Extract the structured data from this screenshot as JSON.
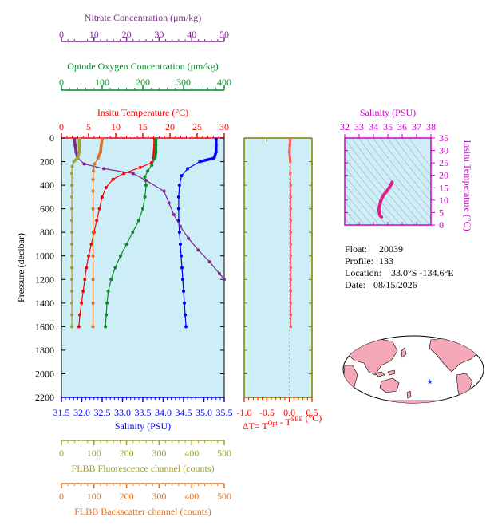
{
  "chart_data": [
    {
      "type": "line",
      "panel": "main-profile",
      "ylabel": "Pressure (decibar)",
      "ylim": [
        2200,
        0
      ],
      "yticks": [
        0,
        200,
        400,
        600,
        800,
        1000,
        1200,
        1400,
        1600,
        1800,
        2000,
        2200
      ],
      "axes": [
        {
          "key": "nitrate",
          "label": "Nitrate Concentration (μm/kg)",
          "range": [
            0,
            50
          ],
          "ticks": [
            0,
            10,
            20,
            30,
            40,
            50
          ],
          "color": "#7b2a8c"
        },
        {
          "key": "oxygen",
          "label": "Optode Oxygen Concentration (μm/kg)",
          "range": [
            0,
            400
          ],
          "ticks": [
            0,
            100,
            200,
            300,
            400
          ],
          "color": "#0a8a2a"
        },
        {
          "key": "temperature",
          "label": "Insitu Temperature (°C)",
          "range": [
            0,
            30
          ],
          "ticks": [
            0,
            5,
            10,
            15,
            20,
            25,
            30
          ],
          "color": "#ff0000"
        },
        {
          "key": "salinity",
          "label": "Salinity (PSU)",
          "range": [
            31.5,
            35.5
          ],
          "ticks": [
            "31.5",
            "32.0",
            "32.5",
            "33.0",
            "33.5",
            "34.0",
            "34.5",
            "35.0",
            "35.5"
          ],
          "color": "#0000ff"
        },
        {
          "key": "fluorescence",
          "label": "FLBB Fluorescence channel (counts)",
          "range": [
            0,
            500
          ],
          "ticks": [
            0,
            100,
            200,
            300,
            400,
            500
          ],
          "color": "#a0a030"
        },
        {
          "key": "backscatter",
          "label": "FLBB Backscatter channel (counts)",
          "range": [
            0,
            500
          ],
          "ticks": [
            0,
            100,
            200,
            300,
            400,
            500
          ],
          "color": "#e07020"
        }
      ],
      "series": [
        {
          "key": "temperature",
          "color": "#ff0000",
          "points": [
            [
              17.2,
              10
            ],
            [
              17.2,
              60
            ],
            [
              17.1,
              120
            ],
            [
              17.0,
              170
            ],
            [
              16.6,
              210
            ],
            [
              14.5,
              250
            ],
            [
              11.5,
              300
            ],
            [
              9.5,
              350
            ],
            [
              8.2,
              420
            ],
            [
              7.5,
              500
            ],
            [
              7.0,
              600
            ],
            [
              6.5,
              700
            ],
            [
              6.0,
              800
            ],
            [
              5.5,
              900
            ],
            [
              5.0,
              1000
            ],
            [
              4.6,
              1100
            ],
            [
              4.3,
              1200
            ],
            [
              4.0,
              1300
            ],
            [
              3.7,
              1400
            ],
            [
              3.4,
              1500
            ],
            [
              3.2,
              1600
            ]
          ]
        },
        {
          "key": "salinity",
          "color": "#0000ff",
          "points": [
            [
              35.3,
              10
            ],
            [
              35.3,
              60
            ],
            [
              35.3,
              120
            ],
            [
              35.25,
              170
            ],
            [
              34.9,
              200
            ],
            [
              34.6,
              260
            ],
            [
              34.45,
              320
            ],
            [
              34.4,
              400
            ],
            [
              34.38,
              500
            ],
            [
              34.38,
              600
            ],
            [
              34.38,
              700
            ],
            [
              34.4,
              800
            ],
            [
              34.42,
              900
            ],
            [
              34.44,
              1000
            ],
            [
              34.46,
              1100
            ],
            [
              34.48,
              1200
            ],
            [
              34.5,
              1300
            ],
            [
              34.52,
              1400
            ],
            [
              34.54,
              1500
            ],
            [
              34.56,
              1600
            ]
          ]
        },
        {
          "key": "oxygen",
          "color": "#0a8a2a",
          "points": [
            [
              232,
              10
            ],
            [
              232,
              60
            ],
            [
              232,
              120
            ],
            [
              230,
              170
            ],
            [
              222,
              230
            ],
            [
              212,
              280
            ],
            [
              205,
              330
            ],
            [
              208,
              400
            ],
            [
              205,
              500
            ],
            [
              200,
              600
            ],
            [
              190,
              700
            ],
            [
              175,
              800
            ],
            [
              160,
              900
            ],
            [
              145,
              1000
            ],
            [
              132,
              1100
            ],
            [
              122,
              1200
            ],
            [
              115,
              1300
            ],
            [
              112,
              1400
            ],
            [
              110,
              1500
            ],
            [
              108,
              1600
            ]
          ]
        },
        {
          "key": "nitrate",
          "color": "#7b2a8c",
          "points": [
            [
              4.0,
              10
            ],
            [
              4.2,
              60
            ],
            [
              4.5,
              120
            ],
            [
              5.0,
              170
            ],
            [
              7.0,
              220
            ],
            [
              13.0,
              260
            ],
            [
              22.0,
              300
            ],
            [
              26.0,
              360
            ],
            [
              31.5,
              450
            ],
            [
              33.0,
              550
            ],
            [
              34.5,
              650
            ],
            [
              36.5,
              750
            ],
            [
              39.0,
              850
            ],
            [
              42.0,
              950
            ],
            [
              45.5,
              1050
            ],
            [
              48.5,
              1150
            ],
            [
              50.0,
              1200
            ]
          ]
        },
        {
          "key": "fluorescence",
          "color": "#a0a030",
          "points": [
            [
              55,
              10
            ],
            [
              55,
              60
            ],
            [
              55,
              120
            ],
            [
              50,
              170
            ],
            [
              38,
              200
            ],
            [
              33,
              240
            ],
            [
              32,
              300
            ],
            [
              32,
              400
            ],
            [
              32,
              500
            ],
            [
              32,
              600
            ],
            [
              32,
              700
            ],
            [
              32,
              800
            ],
            [
              32,
              900
            ],
            [
              32,
              1000
            ],
            [
              32,
              1100
            ],
            [
              32,
              1200
            ],
            [
              32,
              1300
            ],
            [
              32,
              1400
            ],
            [
              32,
              1500
            ],
            [
              32,
              1600
            ]
          ]
        },
        {
          "key": "backscatter",
          "color": "#e07020",
          "points": [
            [
              125,
              10
            ],
            [
              122,
              60
            ],
            [
              120,
              120
            ],
            [
              112,
              170
            ],
            [
              102,
              220
            ],
            [
              98,
              280
            ],
            [
              97,
              350
            ],
            [
              97,
              450
            ],
            [
              97,
              600
            ],
            [
              97,
              800
            ],
            [
              97,
              1000
            ],
            [
              97,
              1200
            ],
            [
              97,
              1400
            ],
            [
              97,
              1600
            ]
          ]
        }
      ]
    },
    {
      "type": "line",
      "panel": "delta-t",
      "xlabel": "ΔT= T",
      "xlabel_sup1": "Opt",
      "xlabel_mid": " - T",
      "xlabel_sup2": "SBE",
      "xlabel_end": " (°C)",
      "xlim": [
        -1.0,
        0.5
      ],
      "xticks": [
        "-1.0",
        "-0.5",
        "0.0",
        "0.5"
      ],
      "ylim": [
        2200,
        0
      ],
      "color": "#ff6060",
      "points": [
        [
          0.02,
          10
        ],
        [
          0.01,
          60
        ],
        [
          0.0,
          120
        ],
        [
          0.02,
          200
        ],
        [
          0.02,
          300
        ],
        [
          0.03,
          400
        ],
        [
          0.03,
          500
        ],
        [
          0.03,
          600
        ],
        [
          0.03,
          700
        ],
        [
          0.03,
          800
        ],
        [
          0.03,
          900
        ],
        [
          0.03,
          1000
        ],
        [
          0.03,
          1100
        ],
        [
          0.03,
          1200
        ],
        [
          0.03,
          1300
        ],
        [
          0.03,
          1400
        ],
        [
          0.03,
          1500
        ],
        [
          0.03,
          1600
        ]
      ]
    },
    {
      "type": "scatter",
      "panel": "ts-diagram",
      "title": "Salinity (PSU)",
      "ylabel": "Insitu Temperature (°C)",
      "xlim": [
        32,
        38
      ],
      "xticks": [
        32,
        33,
        34,
        35,
        36,
        37,
        38
      ],
      "ylim": [
        0,
        35
      ],
      "yticks": [
        0,
        5,
        10,
        15,
        20,
        25,
        30,
        35
      ],
      "color": "#e0208a",
      "points": [
        [
          35.3,
          17.2
        ],
        [
          35.25,
          16.6
        ],
        [
          35.1,
          15.0
        ],
        [
          34.9,
          13.5
        ],
        [
          34.7,
          12.0
        ],
        [
          34.6,
          11.0
        ],
        [
          34.5,
          9.5
        ],
        [
          34.45,
          8.2
        ],
        [
          34.4,
          7.0
        ],
        [
          34.38,
          6.0
        ],
        [
          34.4,
          5.0
        ],
        [
          34.45,
          4.0
        ],
        [
          34.5,
          3.5
        ],
        [
          34.56,
          3.2
        ]
      ]
    }
  ],
  "info": {
    "float_label": "Float:",
    "float_value": "20039",
    "profile_label": "Profile:",
    "profile_value": "133",
    "location_label": "Location:",
    "location_value": "33.0°S  -134.6°E",
    "date_label": "Date:",
    "date_value": "08/15/2026"
  },
  "map": {
    "marker_color": "#1040ff",
    "land_color": "#f4a8b8",
    "ocean_color": "#ffffff",
    "marker_lon": -134.6,
    "marker_lat": -33.0
  },
  "colors": {
    "plot_bg": "#cdeef6"
  }
}
